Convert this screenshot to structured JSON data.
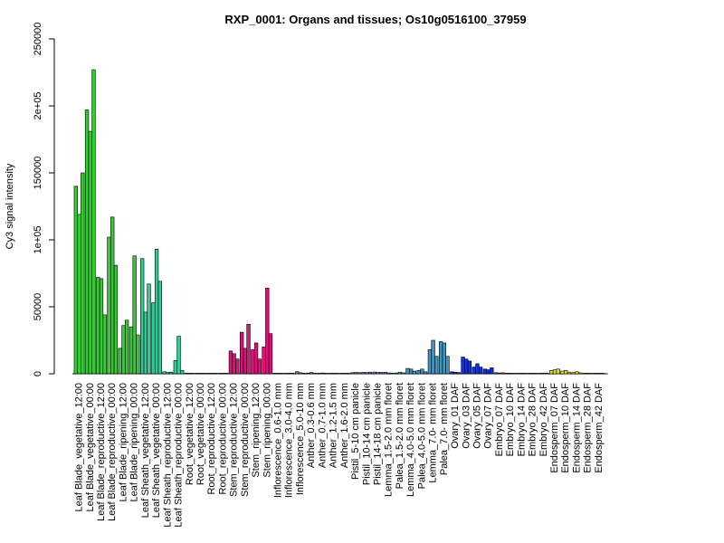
{
  "chart_data": {
    "type": "bar",
    "title": "RXP_0001: Organs and tissues; Os10g0516100_37959",
    "xlabel": "",
    "ylabel": "Cy3 signal intensity",
    "ylim": [
      0,
      250000
    ],
    "yticks": [
      0,
      50000,
      100000,
      150000,
      200000,
      250000
    ],
    "ytick_labels": [
      "0",
      "50000",
      "1e+05",
      "150000",
      "2e+05",
      "250000"
    ],
    "grid": false,
    "legend": "none",
    "groups": [
      {
        "label": "Leaf Blade_vegetative_12:00",
        "color": "#33cc33",
        "values": [
          140000,
          119000,
          150000
        ]
      },
      {
        "label": "Leaf Blade_vegetative_00:00",
        "color": "#33cc33",
        "values": [
          197000,
          181000,
          227000
        ]
      },
      {
        "label": "Leaf Blade_reproductive_12:00",
        "color": "#33cc33",
        "values": [
          72000,
          71000,
          44000
        ]
      },
      {
        "label": "Leaf Blade_reproductive_00:00",
        "color": "#33cc33",
        "values": [
          102000,
          117000,
          81000
        ]
      },
      {
        "label": "Leaf Blade_ripening_12:00",
        "color": "#33cc33",
        "values": [
          19000,
          36000,
          40000
        ]
      },
      {
        "label": "Leaf Blade_ripening_00:00",
        "color": "#33cc33",
        "values": [
          35000,
          88000,
          29000
        ]
      },
      {
        "label": "Leaf Sheath_vegetative_12:00",
        "color": "#33cc99",
        "values": [
          86000,
          46000,
          67000
        ]
      },
      {
        "label": "Leaf Sheath_vegetative_00:00",
        "color": "#33cc99",
        "values": [
          53000,
          93000,
          69000
        ]
      },
      {
        "label": "Leaf Sheath_reproductive_12:00",
        "color": "#33cc99",
        "values": [
          1500,
          1000,
          1200
        ]
      },
      {
        "label": "Leaf Sheath_reproductive_00:00",
        "color": "#33cc99",
        "values": [
          10000,
          28000,
          2500
        ]
      },
      {
        "label": "Root_vegetative_12:00",
        "color": "#999999",
        "values": [
          300,
          300,
          300
        ]
      },
      {
        "label": "Root_vegetative_00:00",
        "color": "#999999",
        "values": [
          300,
          300,
          300
        ]
      },
      {
        "label": "Root_reproductive_12:00",
        "color": "#999999",
        "values": [
          300,
          300,
          300
        ]
      },
      {
        "label": "Root_reproductive_00:00",
        "color": "#999999",
        "values": [
          300,
          300,
          300
        ]
      },
      {
        "label": "Stem_reproductive_12:00",
        "color": "#e0107a",
        "values": [
          17000,
          15000,
          11000
        ]
      },
      {
        "label": "Stem_reproductive_00:00",
        "color": "#e0107a",
        "values": [
          31000,
          19000,
          37000
        ]
      },
      {
        "label": "Stem_ripening_12:00",
        "color": "#e0107a",
        "values": [
          18000,
          23000,
          11000
        ]
      },
      {
        "label": "Stem_ripening_00:00",
        "color": "#e0107a",
        "values": [
          20000,
          64000,
          30000
        ]
      },
      {
        "label": "Inflorescence_0.6-1.0 mm",
        "color": "#669966",
        "values": [
          300,
          300,
          300
        ]
      },
      {
        "label": "Inflorescence_3.0-4.0 mm",
        "color": "#669966",
        "values": [
          400,
          400,
          400
        ]
      },
      {
        "label": "Inflorescence_5.0-10 mm",
        "color": "#669966",
        "values": [
          1600,
          800,
          400
        ]
      },
      {
        "label": "Anther_0.3-0.6 mm",
        "color": "#cc3399",
        "values": [
          500,
          900,
          400
        ]
      },
      {
        "label": "Anther_0.7-1.0 mm",
        "color": "#cc3399",
        "values": [
          400,
          600,
          300
        ]
      },
      {
        "label": "Anther_1.2-1.5 mm",
        "color": "#cc3399",
        "values": [
          300,
          400,
          300
        ]
      },
      {
        "label": "Anther_1.6-2.0 mm",
        "color": "#cc3399",
        "values": [
          300,
          300,
          300
        ]
      },
      {
        "label": "Pistil_5-10 cm panicle",
        "color": "#9966cc",
        "values": [
          800,
          1000,
          900
        ]
      },
      {
        "label": "Pistil_10-14 cm panicle",
        "color": "#9966cc",
        "values": [
          1100,
          900,
          1200
        ]
      },
      {
        "label": "Pistil_14-18 cm panicle",
        "color": "#9966cc",
        "values": [
          1300,
          1000,
          1100
        ]
      },
      {
        "label": "Lemma_1.5-2.0 mm floret",
        "color": "#3399cc",
        "values": [
          1100,
          600,
          500
        ]
      },
      {
        "label": "Palea_1.5-2.0 mm floret",
        "color": "#3399cc",
        "values": [
          600,
          1200,
          700
        ]
      },
      {
        "label": "Lemma_4.0-5.0 mm floret",
        "color": "#3399cc",
        "values": [
          4000,
          3500,
          2000
        ]
      },
      {
        "label": "Palea_4.0-5.0 mm floret",
        "color": "#3399cc",
        "values": [
          2500,
          3500,
          1500
        ]
      },
      {
        "label": "Lemma_7.0- mm floret",
        "color": "#3399cc",
        "values": [
          18000,
          25000,
          13000
        ]
      },
      {
        "label": "Palea_7.0- mm floret",
        "color": "#3399cc",
        "values": [
          24000,
          23000,
          13000
        ]
      },
      {
        "label": "Ovary_01 DAF",
        "color": "#1133cc",
        "values": [
          1500,
          1200,
          900
        ]
      },
      {
        "label": "Ovary_03 DAF",
        "color": "#1133cc",
        "values": [
          12500,
          11000,
          9500
        ]
      },
      {
        "label": "Ovary_05 DAF",
        "color": "#1133cc",
        "values": [
          5000,
          7500,
          5000
        ]
      },
      {
        "label": "Ovary_07 DAF",
        "color": "#1133cc",
        "values": [
          3500,
          3000,
          4500
        ]
      },
      {
        "label": "Embryo_07 DAF",
        "color": "#666633",
        "values": [
          800,
          600,
          700
        ]
      },
      {
        "label": "Embryo_10 DAF",
        "color": "#666633",
        "values": [
          500,
          400,
          400
        ]
      },
      {
        "label": "Embryo_14 DAF",
        "color": "#666633",
        "values": [
          400,
          400,
          300
        ]
      },
      {
        "label": "Embryo_28 DAF",
        "color": "#666633",
        "values": [
          300,
          300,
          300
        ]
      },
      {
        "label": "Embryo_42 DAF",
        "color": "#666633",
        "values": [
          300,
          400,
          300
        ]
      },
      {
        "label": "Endosperm_07 DAF",
        "color": "#dddd33",
        "values": [
          2500,
          3000,
          3500
        ]
      },
      {
        "label": "Endosperm_10 DAF",
        "color": "#dddd33",
        "values": [
          2000,
          2500,
          1200
        ]
      },
      {
        "label": "Endosperm_14 DAF",
        "color": "#dddd33",
        "values": [
          900,
          1500,
          700
        ]
      },
      {
        "label": "Endosperm_28 DAF",
        "color": "#dddd33",
        "values": [
          400,
          300,
          300
        ]
      },
      {
        "label": "Endosperm_42 DAF",
        "color": "#dddd33",
        "values": [
          300,
          300,
          300
        ]
      }
    ]
  }
}
